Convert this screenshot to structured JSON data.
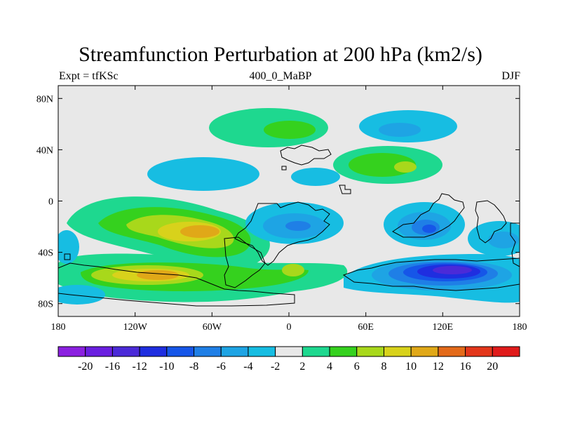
{
  "title": "Streamfunction Perturbation at 200 hPa (km2/s)",
  "subtitle_left": "Expt = tfKSc",
  "subtitle_center": "400_0_MaBP",
  "subtitle_right": "DJF",
  "map": {
    "projection": "equirectangular",
    "lon_range": [
      -180,
      180
    ],
    "lat_range": [
      -90,
      90
    ],
    "background_color": "#e8e8e8",
    "lat_ticks": [
      {
        "value": 80,
        "label": "80N"
      },
      {
        "value": 40,
        "label": "40N"
      },
      {
        "value": 0,
        "label": "0"
      },
      {
        "value": -40,
        "label": "40S"
      },
      {
        "value": -80,
        "label": "80S"
      }
    ],
    "lon_ticks": [
      {
        "value": -180,
        "label": "180"
      },
      {
        "value": -120,
        "label": "120W"
      },
      {
        "value": -60,
        "label": "60W"
      },
      {
        "value": 0,
        "label": "0"
      },
      {
        "value": 60,
        "label": "60E"
      },
      {
        "value": 120,
        "label": "120E"
      },
      {
        "value": 180,
        "label": "180"
      }
    ]
  },
  "colorbar": {
    "levels": [
      "-20",
      "-16",
      "-12",
      "-10",
      "-8",
      "-6",
      "-4",
      "-2",
      "2",
      "4",
      "6",
      "8",
      "10",
      "12",
      "16",
      "20"
    ],
    "colors": [
      "#8b20e0",
      "#6a1fe0",
      "#4b2ad8",
      "#1f2ee0",
      "#1656e8",
      "#1f7fe6",
      "#1ea4e4",
      "#17bde2",
      "#e8e8e8",
      "#1ed88f",
      "#35d11e",
      "#a8d81b",
      "#d8d21b",
      "#e0a818",
      "#e36a1a",
      "#e3371b",
      "#e01b1b"
    ]
  }
}
